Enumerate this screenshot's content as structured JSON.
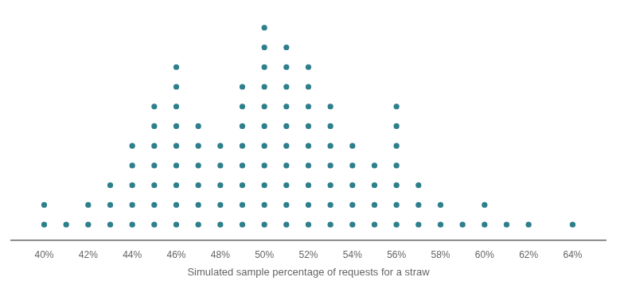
{
  "chart_data": {
    "type": "dot",
    "xlabel": "Simulated sample percentage of requests for a straw",
    "x": [
      40,
      41,
      42,
      43,
      44,
      45,
      46,
      47,
      48,
      49,
      50,
      51,
      52,
      53,
      54,
      55,
      56,
      57,
      58,
      59,
      60,
      61,
      62,
      63,
      64
    ],
    "values": [
      2,
      1,
      2,
      3,
      5,
      7,
      9,
      6,
      5,
      8,
      11,
      10,
      9,
      7,
      5,
      4,
      7,
      3,
      2,
      1,
      2,
      1,
      1,
      0,
      1
    ],
    "color": "#2e7f8c",
    "xlim": [
      38.5,
      65.5
    ],
    "xticks": [
      {
        "value": 40,
        "label": "40%"
      },
      {
        "value": 42,
        "label": "42%"
      },
      {
        "value": 44,
        "label": "44%"
      },
      {
        "value": 46,
        "label": "46%"
      },
      {
        "value": 48,
        "label": "48%"
      },
      {
        "value": 50,
        "label": "50%"
      },
      {
        "value": 52,
        "label": "52%"
      },
      {
        "value": 54,
        "label": "54%"
      },
      {
        "value": 56,
        "label": "56%"
      },
      {
        "value": 58,
        "label": "58%"
      },
      {
        "value": 60,
        "label": "60%"
      },
      {
        "value": 62,
        "label": "62%"
      },
      {
        "value": 64,
        "label": "64%"
      }
    ],
    "ylim": [
      -0.3,
      11.5
    ],
    "grid": false,
    "tick_labels": "x"
  }
}
